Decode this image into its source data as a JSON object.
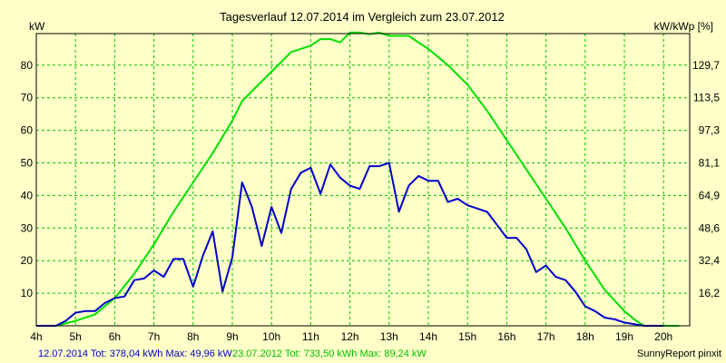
{
  "chart_data": {
    "type": "line",
    "title": "Tagesverlauf 12.07.2014 im Vergleich zum 23.07.2012",
    "ylabel_left": "kW",
    "ylabel_right": "kW/kWp [%]",
    "x_ticks": [
      "4h",
      "5h",
      "6h",
      "7h",
      "8h",
      "9h",
      "10h",
      "11h",
      "12h",
      "13h",
      "14h",
      "15h",
      "16h",
      "17h",
      "18h",
      "19h",
      "20h"
    ],
    "y_ticks_left": [
      "10",
      "20",
      "30",
      "40",
      "50",
      "60",
      "70",
      "80"
    ],
    "y_ticks_right": [
      "16,2",
      "32,4",
      "48,6",
      "64,9",
      "81,1",
      "97,3",
      "113,5",
      "129,7"
    ],
    "xlim": [
      4,
      20.4
    ],
    "ylim": [
      0,
      89
    ],
    "grid": true,
    "series": [
      {
        "name": "12.07.2014 Tot: 378,04 kWh Max: 49,96 kW",
        "color": "#0000cc",
        "x": [
          4.0,
          4.5,
          4.75,
          5.0,
          5.25,
          5.5,
          5.75,
          6.0,
          6.25,
          6.5,
          6.75,
          7.0,
          7.25,
          7.5,
          7.75,
          8.0,
          8.25,
          8.5,
          8.75,
          9.0,
          9.25,
          9.5,
          9.75,
          10.0,
          10.25,
          10.5,
          10.75,
          11.0,
          11.25,
          11.5,
          11.75,
          12.0,
          12.25,
          12.5,
          12.75,
          13.0,
          13.25,
          13.5,
          13.75,
          14.0,
          14.25,
          14.5,
          14.75,
          15.0,
          15.25,
          15.5,
          15.75,
          16.0,
          16.25,
          16.5,
          16.75,
          17.0,
          17.25,
          17.5,
          17.75,
          18.0,
          18.25,
          18.5,
          18.75,
          19.0,
          19.25,
          19.5,
          19.75,
          20.0
        ],
        "y": [
          0,
          0,
          1.5,
          4,
          4.5,
          4.5,
          7,
          8.5,
          9,
          14,
          14.5,
          17,
          15,
          20.5,
          20.5,
          12,
          21.5,
          29,
          10.5,
          21,
          44,
          36.5,
          24.5,
          36.5,
          28.5,
          42,
          47,
          48.5,
          40.5,
          49.5,
          45.5,
          43,
          42,
          49,
          49,
          50,
          35,
          43,
          46,
          44.5,
          44.5,
          38,
          39,
          37,
          36,
          35,
          31,
          27,
          27,
          23.5,
          16.5,
          18.5,
          15,
          14,
          10.5,
          6,
          4.5,
          2.5,
          2,
          1,
          0.5,
          0,
          0,
          0
        ]
      },
      {
        "name": "23.07.2012 Tot: 733,50 kWh Max: 89,24 kW",
        "color": "#00e000",
        "x": [
          4.0,
          4.5,
          5.0,
          5.5,
          6.0,
          6.5,
          7.0,
          7.5,
          8.0,
          8.5,
          9.0,
          9.25,
          9.5,
          10.0,
          10.5,
          11.0,
          11.25,
          11.5,
          11.75,
          12.0,
          12.25,
          12.5,
          12.75,
          13.0,
          13.5,
          14.0,
          14.5,
          15.0,
          15.5,
          16.0,
          16.5,
          17.0,
          17.5,
          18.0,
          18.5,
          19.0,
          19.25,
          19.5,
          19.75,
          20.0,
          20.4
        ],
        "y": [
          0,
          0,
          1.5,
          3.5,
          8.5,
          16,
          25,
          35,
          44,
          53,
          63,
          69,
          72,
          78,
          84,
          86,
          88,
          88,
          87,
          90,
          90,
          89.5,
          90,
          89,
          89,
          85,
          80,
          74,
          66,
          57,
          48,
          39,
          30,
          20,
          11,
          4.5,
          2,
          0,
          0,
          0,
          0
        ]
      }
    ],
    "legend": [
      {
        "text": "12.07.2014 Tot: 378,04 kWh Max: 49,96 kW",
        "color": "#0000cc"
      },
      {
        "text": "23.07.2012 Tot: 733,50 kWh Max: 89,24 kW",
        "color": "#00c000"
      }
    ],
    "credit": "SunnyReport pinxit"
  }
}
